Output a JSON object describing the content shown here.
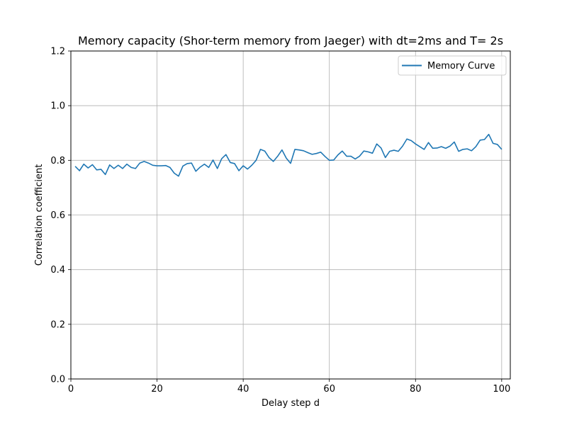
{
  "chart_data": {
    "type": "line",
    "title": "Memory capacity (Shor-term memory from Jaeger) with dt=2ms and T= 2s",
    "xlabel": "Delay step d",
    "ylabel": "Correlation coefficient",
    "xlim": [
      0,
      102
    ],
    "ylim": [
      0,
      1.2
    ],
    "xticks": [
      0,
      20,
      40,
      60,
      80,
      100
    ],
    "yticks": [
      0.0,
      0.2,
      0.4,
      0.6,
      0.8,
      1.0,
      1.2
    ],
    "xtick_labels": [
      "0",
      "20",
      "40",
      "60",
      "80",
      "100"
    ],
    "ytick_labels": [
      "0.0",
      "0.2",
      "0.4",
      "0.6",
      "0.8",
      "1.0",
      "1.2"
    ],
    "grid": true,
    "legend": {
      "position": "top-right",
      "entries": [
        "Memory Curve"
      ]
    },
    "series": [
      {
        "name": "Memory Curve",
        "color": "#1f77b4",
        "x": [
          1,
          2,
          3,
          4,
          5,
          6,
          7,
          8,
          9,
          10,
          11,
          12,
          13,
          14,
          15,
          16,
          17,
          18,
          19,
          20,
          21,
          22,
          23,
          24,
          25,
          26,
          27,
          28,
          29,
          30,
          31,
          32,
          33,
          34,
          35,
          36,
          37,
          38,
          39,
          40,
          41,
          42,
          43,
          44,
          45,
          46,
          47,
          48,
          49,
          50,
          51,
          52,
          53,
          54,
          55,
          56,
          57,
          58,
          59,
          60,
          61,
          62,
          63,
          64,
          65,
          66,
          67,
          68,
          69,
          70,
          71,
          72,
          73,
          74,
          75,
          76,
          77,
          78,
          79,
          80,
          81,
          82,
          83,
          84,
          85,
          86,
          87,
          88,
          89,
          90,
          91,
          92,
          93,
          94,
          95,
          96,
          97,
          98,
          99,
          100
        ],
        "y": [
          0.778,
          0.762,
          0.786,
          0.772,
          0.784,
          0.765,
          0.767,
          0.748,
          0.783,
          0.77,
          0.782,
          0.77,
          0.786,
          0.774,
          0.77,
          0.79,
          0.796,
          0.79,
          0.782,
          0.78,
          0.78,
          0.781,
          0.774,
          0.753,
          0.742,
          0.779,
          0.788,
          0.79,
          0.76,
          0.775,
          0.786,
          0.774,
          0.801,
          0.77,
          0.806,
          0.821,
          0.792,
          0.788,
          0.762,
          0.78,
          0.768,
          0.782,
          0.8,
          0.84,
          0.834,
          0.81,
          0.796,
          0.815,
          0.838,
          0.808,
          0.789,
          0.84,
          0.838,
          0.835,
          0.828,
          0.822,
          0.825,
          0.83,
          0.814,
          0.8,
          0.801,
          0.82,
          0.834,
          0.815,
          0.815,
          0.805,
          0.815,
          0.834,
          0.831,
          0.826,
          0.86,
          0.845,
          0.81,
          0.833,
          0.837,
          0.833,
          0.852,
          0.878,
          0.872,
          0.86,
          0.85,
          0.84,
          0.865,
          0.844,
          0.845,
          0.85,
          0.844,
          0.852,
          0.867,
          0.833,
          0.84,
          0.842,
          0.835,
          0.85,
          0.874,
          0.876,
          0.895,
          0.862,
          0.858,
          0.84
        ]
      }
    ]
  }
}
